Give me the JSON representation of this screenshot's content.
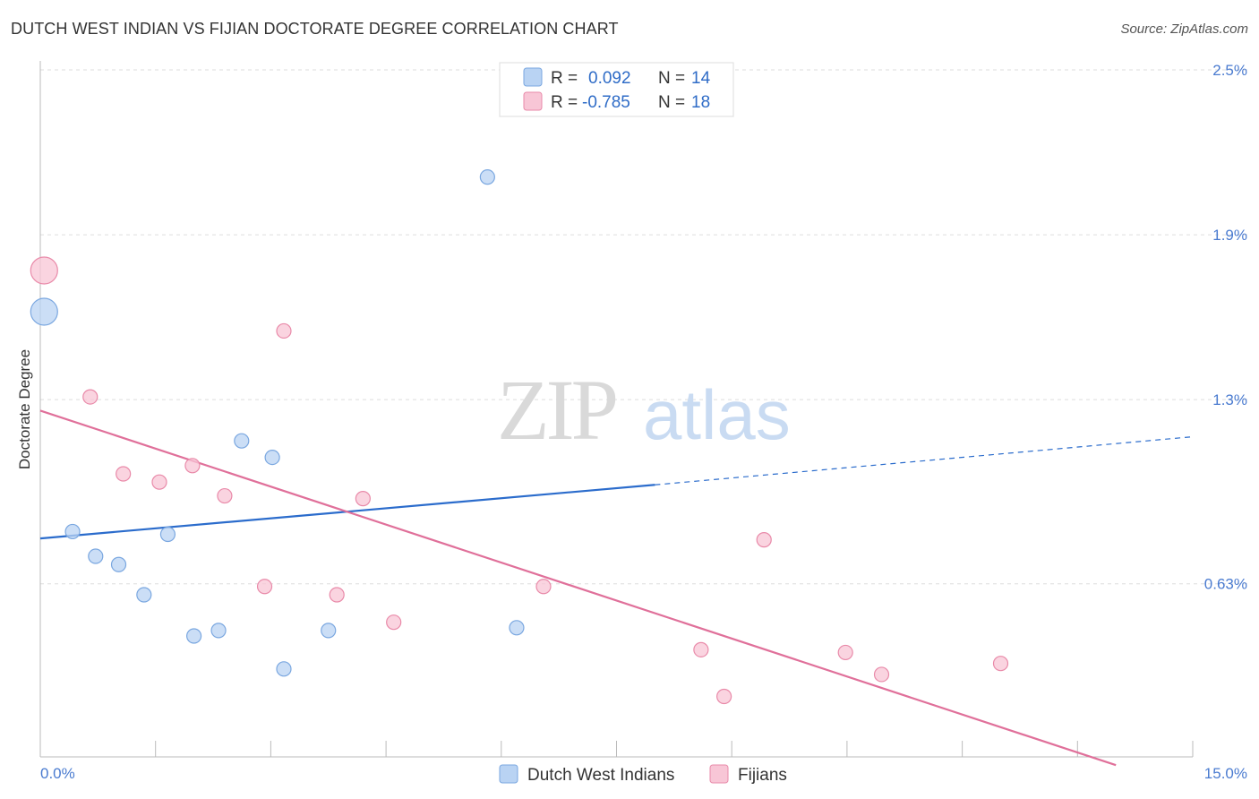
{
  "header": {
    "title": "DUTCH WEST INDIAN VS FIJIAN DOCTORATE DEGREE CORRELATION CHART",
    "source": "Source: ZipAtlas.com"
  },
  "watermark": {
    "zip": "ZIP",
    "atlas": "atlas"
  },
  "colors": {
    "blue_fill": "#b9d3f3",
    "blue_stroke": "#7aa7e0",
    "blue_line": "#2b6ccc",
    "pink_fill": "#f8c6d6",
    "pink_stroke": "#e98aa9",
    "pink_line": "#e0709a",
    "grid": "#dddddd",
    "tick_label": "#4a7bd0"
  },
  "legend": {
    "r_label": "R =",
    "n_label": "N =",
    "entries": [
      {
        "series": "Dutch West Indians",
        "r": "0.092",
        "n": "14"
      },
      {
        "series": "Fijians",
        "r": "-0.785",
        "n": "18"
      }
    ]
  },
  "chart_data": {
    "type": "scatter",
    "title": "DUTCH WEST INDIAN VS FIJIAN DOCTORATE DEGREE CORRELATION CHART",
    "xlabel": "",
    "ylabel": "Doctorate Degree",
    "xlim": [
      0,
      15
    ],
    "ylim": [
      0.0,
      2.5
    ],
    "x_tick_labels": [
      "0.0%",
      "15.0%"
    ],
    "y_ticks": [
      {
        "value": 2.5,
        "label": "2.5%"
      },
      {
        "value": 1.9,
        "label": "1.9%"
      },
      {
        "value": 1.3,
        "label": "1.3%"
      },
      {
        "value": 0.63,
        "label": "0.63%"
      }
    ],
    "series": [
      {
        "name": "Dutch West Indians",
        "color": "#b9d3f3",
        "points": [
          {
            "x": 0.05,
            "y": 1.62,
            "size": "large"
          },
          {
            "x": 0.42,
            "y": 0.82
          },
          {
            "x": 0.72,
            "y": 0.73
          },
          {
            "x": 1.02,
            "y": 0.7
          },
          {
            "x": 1.35,
            "y": 0.59
          },
          {
            "x": 1.66,
            "y": 0.81
          },
          {
            "x": 2.0,
            "y": 0.44
          },
          {
            "x": 2.32,
            "y": 0.46
          },
          {
            "x": 2.62,
            "y": 1.15
          },
          {
            "x": 3.02,
            "y": 1.09
          },
          {
            "x": 3.17,
            "y": 0.32
          },
          {
            "x": 3.75,
            "y": 0.46
          },
          {
            "x": 5.82,
            "y": 2.11
          },
          {
            "x": 6.2,
            "y": 0.47
          }
        ],
        "trendline": {
          "x0": 0.0,
          "y0": 0.795,
          "x1": 8.0,
          "y1": 0.99,
          "dashed_to_x": 15.0,
          "dashed_to_y": 1.165
        }
      },
      {
        "name": "Fijians",
        "color": "#f8c6d6",
        "points": [
          {
            "x": 0.05,
            "y": 1.77,
            "size": "large"
          },
          {
            "x": 0.65,
            "y": 1.31
          },
          {
            "x": 1.08,
            "y": 1.03
          },
          {
            "x": 1.55,
            "y": 1.0
          },
          {
            "x": 1.98,
            "y": 1.06
          },
          {
            "x": 2.4,
            "y": 0.95
          },
          {
            "x": 2.92,
            "y": 0.62
          },
          {
            "x": 3.17,
            "y": 1.55
          },
          {
            "x": 3.86,
            "y": 0.59
          },
          {
            "x": 4.2,
            "y": 0.94
          },
          {
            "x": 4.6,
            "y": 0.49
          },
          {
            "x": 6.55,
            "y": 0.62
          },
          {
            "x": 8.6,
            "y": 0.39
          },
          {
            "x": 8.9,
            "y": 0.22
          },
          {
            "x": 9.42,
            "y": 0.79
          },
          {
            "x": 10.48,
            "y": 0.38
          },
          {
            "x": 10.95,
            "y": 0.3
          },
          {
            "x": 12.5,
            "y": 0.34
          }
        ],
        "trendline": {
          "x0": 0.0,
          "y0": 1.26,
          "x1": 14.0,
          "y1": -0.03
        }
      }
    ]
  }
}
